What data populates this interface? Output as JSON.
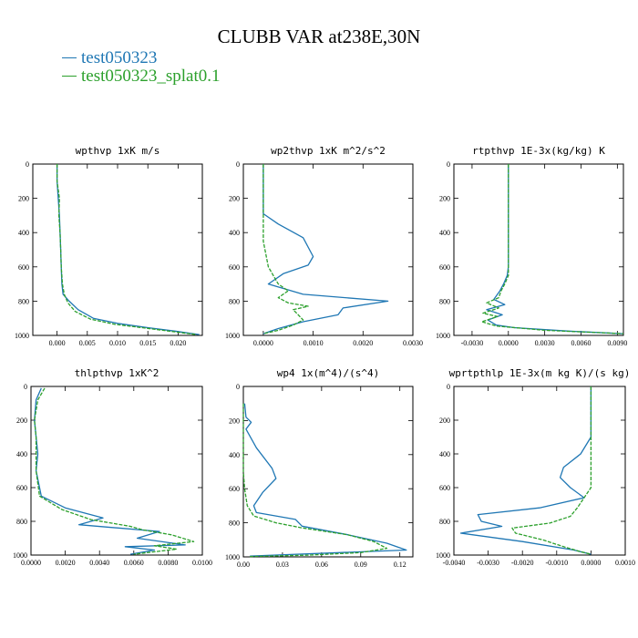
{
  "figure": {
    "title": "CLUBB VAR at238E,30N",
    "legend": [
      {
        "name": "test050323",
        "color": "#1f77b4"
      },
      {
        "name": "test050323_splat0.1",
        "color": "#2ca02c"
      }
    ]
  },
  "chart_data": [
    {
      "type": "line",
      "title": "wpthvp  1xK m/s",
      "xlim": [
        -0.004,
        0.024
      ],
      "ylim": [
        1000,
        0
      ],
      "xticks": [
        0.0,
        0.005,
        0.01,
        0.015,
        0.02
      ],
      "xtick_labels": [
        "0.000",
        "0.005",
        "0.010",
        "0.015",
        "0.020"
      ],
      "yticks": [
        0,
        200,
        400,
        600,
        800,
        1000
      ],
      "ytick_labels": [
        "0",
        "200",
        "400",
        "600",
        "800",
        "1000"
      ],
      "series": [
        {
          "name": "test050323",
          "color": "#1f77b4",
          "x": [
            0.0,
            0.0,
            0.0002,
            0.0004,
            0.0005,
            0.0006,
            0.0007,
            0.0008,
            0.001,
            0.002,
            0.0035,
            0.006,
            0.01,
            0.015,
            0.0195,
            0.0235
          ],
          "y": [
            0,
            100,
            200,
            300,
            400,
            500,
            600,
            700,
            760,
            800,
            850,
            900,
            930,
            955,
            975,
            995
          ]
        },
        {
          "name": "test050323_splat0.1",
          "color": "#2ca02c",
          "x": [
            0.0,
            0.0,
            0.0004,
            0.0003,
            0.0005,
            0.0006,
            0.0007,
            0.0009,
            0.0012,
            0.0018,
            0.003,
            0.0055,
            0.0095,
            0.0145,
            0.019,
            0.023
          ],
          "y": [
            0,
            100,
            200,
            300,
            400,
            500,
            600,
            700,
            760,
            810,
            860,
            905,
            935,
            957,
            977,
            995
          ]
        }
      ]
    },
    {
      "type": "line",
      "title": "wp2thvp  1xK m^2/s^2",
      "xlim": [
        -0.0004,
        0.003
      ],
      "ylim": [
        1000,
        0
      ],
      "xticks": [
        0.0,
        0.001,
        0.002,
        0.003
      ],
      "xtick_labels": [
        "0.0000",
        "0.0010",
        "0.0020",
        "0.0030"
      ],
      "yticks": [
        0,
        200,
        400,
        600,
        800,
        1000
      ],
      "ytick_labels": [
        "0",
        "200",
        "400",
        "600",
        "800",
        "1000"
      ],
      "series": [
        {
          "name": "test050323",
          "color": "#1f77b4",
          "x": [
            0.0,
            0.0,
            0.0,
            0.0003,
            0.0008,
            0.001,
            0.0009,
            0.0004,
            0.0001,
            0.0008,
            0.0025,
            0.0016,
            0.0015,
            0.0008,
            0.0003,
            0.0
          ],
          "y": [
            0,
            150,
            290,
            350,
            430,
            540,
            590,
            640,
            700,
            760,
            800,
            840,
            880,
            920,
            960,
            990
          ]
        },
        {
          "name": "test050323_splat0.1",
          "color": "#2ca02c",
          "x": [
            0.0,
            0.0,
            0.0,
            0.0,
            0.0001,
            0.0003,
            0.0005,
            0.0003,
            0.0005,
            0.0009,
            0.0006,
            0.0007,
            0.0008,
            0.0006,
            0.0003,
            0.0
          ],
          "y": [
            0,
            150,
            300,
            450,
            600,
            700,
            740,
            780,
            810,
            830,
            850,
            880,
            910,
            940,
            970,
            990
          ]
        }
      ]
    },
    {
      "type": "line",
      "title": "rtpthvp  1E-3x(kg/kg) K",
      "xlim": [
        -0.0045,
        0.0095
      ],
      "ylim": [
        1000,
        0
      ],
      "xticks": [
        -0.003,
        0.0,
        0.003,
        0.006,
        0.009
      ],
      "xtick_labels": [
        "-0.0030",
        "0.0000",
        "0.0030",
        "0.0060",
        "0.0090"
      ],
      "yticks": [
        0,
        200,
        400,
        600,
        800,
        1000
      ],
      "ytick_labels": [
        "0",
        "200",
        "400",
        "600",
        "800",
        "1000"
      ],
      "series": [
        {
          "name": "test050323",
          "color": "#1f77b4",
          "x": [
            0.0,
            0.0,
            0.0,
            0.0,
            -0.0001,
            -0.0004,
            -0.0007,
            -0.0012,
            -0.0003,
            -0.0018,
            -0.0005,
            -0.0017,
            -0.001,
            0.0005,
            0.005,
            0.0095
          ],
          "y": [
            0,
            200,
            400,
            600,
            650,
            700,
            740,
            790,
            820,
            850,
            880,
            910,
            940,
            955,
            975,
            990
          ]
        },
        {
          "name": "test050323_splat0.1",
          "color": "#2ca02c",
          "x": [
            0.0,
            0.0,
            0.0,
            0.0,
            0.0,
            -0.0003,
            -0.0006,
            -0.0008,
            -0.0018,
            -0.0008,
            -0.0021,
            -0.0009,
            -0.0022,
            -0.001,
            0.003,
            0.0095
          ],
          "y": [
            0,
            200,
            400,
            600,
            650,
            700,
            740,
            780,
            810,
            840,
            870,
            890,
            920,
            945,
            970,
            990
          ]
        }
      ]
    },
    {
      "type": "line",
      "title": "thlpthvp  1xK^2",
      "xlim": [
        0.0,
        0.01
      ],
      "ylim": [
        1000,
        0
      ],
      "xticks": [
        0.0,
        0.002,
        0.004,
        0.006,
        0.008,
        0.01
      ],
      "xtick_labels": [
        "0.0000",
        "0.0020",
        "0.0040",
        "0.0060",
        "0.0080",
        "0.0100"
      ],
      "yticks": [
        0,
        200,
        400,
        600,
        800,
        1000
      ],
      "ytick_labels": [
        "0",
        "200",
        "400",
        "600",
        "800",
        "1000"
      ],
      "series": [
        {
          "name": "test050323",
          "color": "#1f77b4",
          "x": [
            0.0006,
            0.0003,
            0.0002,
            0.0003,
            0.0004,
            0.0003,
            0.0006,
            0.002,
            0.0042,
            0.0028,
            0.0075,
            0.0062,
            0.009,
            0.0055,
            0.0072,
            0.0058
          ],
          "y": [
            10,
            80,
            200,
            300,
            400,
            500,
            650,
            720,
            780,
            820,
            860,
            900,
            940,
            950,
            970,
            995
          ]
        },
        {
          "name": "test050323_splat0.1",
          "color": "#2ca02c",
          "x": [
            0.0008,
            0.0004,
            0.0002,
            0.0003,
            0.0003,
            0.0003,
            0.0005,
            0.0018,
            0.0035,
            0.0058,
            0.0065,
            0.0082,
            0.0095,
            0.0072,
            0.0085,
            0.006
          ],
          "y": [
            10,
            80,
            200,
            300,
            400,
            500,
            650,
            730,
            790,
            830,
            850,
            880,
            920,
            945,
            965,
            995
          ]
        }
      ]
    },
    {
      "type": "line",
      "title": "wp4  1x(m^4)/(s^4)",
      "xlim": [
        0.0,
        0.13
      ],
      "ylim": [
        1000,
        0
      ],
      "xticks": [
        0.0,
        0.03,
        0.06,
        0.09,
        0.12
      ],
      "xtick_labels": [
        "0.00",
        "0.03",
        "0.06",
        "0.09",
        "0.12"
      ],
      "yticks": [
        0,
        200,
        400,
        600,
        800,
        1000
      ],
      "ytick_labels": [
        "0",
        "200",
        "400",
        "600",
        "800",
        "1000"
      ],
      "series": [
        {
          "name": "test050323",
          "color": "#1f77b4",
          "x": [
            0.001,
            0.002,
            0.006,
            0.002,
            0.01,
            0.022,
            0.025,
            0.015,
            0.008,
            0.01,
            0.04,
            0.045,
            0.08,
            0.11,
            0.125,
            0.005
          ],
          "y": [
            100,
            180,
            210,
            250,
            360,
            480,
            540,
            620,
            700,
            740,
            780,
            820,
            870,
            920,
            960,
            995
          ]
        },
        {
          "name": "test050323_splat0.1",
          "color": "#2ca02c",
          "x": [
            0.0,
            0.0,
            0.0,
            0.0,
            0.0,
            0.001,
            0.003,
            0.008,
            0.025,
            0.045,
            0.08,
            0.1,
            0.11,
            0.09,
            0.05,
            0.005
          ],
          "y": [
            100,
            200,
            300,
            400,
            500,
            600,
            700,
            760,
            800,
            830,
            870,
            910,
            950,
            975,
            990,
            998
          ]
        }
      ]
    },
    {
      "type": "line",
      "title": "wprtpthlp  1E-3x(m kg K)/(s kg)",
      "xlim": [
        -0.004,
        0.001
      ],
      "ylim": [
        1000,
        0
      ],
      "xticks": [
        -0.004,
        -0.003,
        -0.002,
        -0.001,
        0.0,
        0.001
      ],
      "xtick_labels": [
        "-0.0040",
        "-0.0030",
        "-0.0020",
        "-0.0010",
        "0.0000",
        "0.0010"
      ],
      "yticks": [
        0,
        200,
        400,
        600,
        800,
        1000
      ],
      "ytick_labels": [
        "0",
        "200",
        "400",
        "600",
        "800",
        "1000"
      ],
      "series": [
        {
          "name": "test050323",
          "color": "#1f77b4",
          "x": [
            0.0,
            0.0,
            0.0,
            -0.0003,
            -0.0008,
            -0.0009,
            -0.0006,
            -0.0002,
            -0.0015,
            -0.0033,
            -0.0032,
            -0.0026,
            -0.0038,
            -0.002,
            -0.0005,
            0.0
          ],
          "y": [
            0,
            100,
            300,
            400,
            480,
            540,
            600,
            660,
            720,
            760,
            800,
            830,
            870,
            920,
            970,
            995
          ]
        },
        {
          "name": "test050323_splat0.1",
          "color": "#2ca02c",
          "x": [
            0.0,
            0.0,
            0.0,
            0.0,
            0.0,
            0.0,
            -0.0002,
            -0.0004,
            -0.0006,
            -0.0012,
            -0.0023,
            -0.0022,
            -0.0014,
            -0.0008,
            -0.0003,
            0.0
          ],
          "y": [
            0,
            100,
            300,
            400,
            500,
            600,
            660,
            720,
            770,
            810,
            840,
            870,
            910,
            950,
            980,
            995
          ]
        }
      ]
    }
  ]
}
